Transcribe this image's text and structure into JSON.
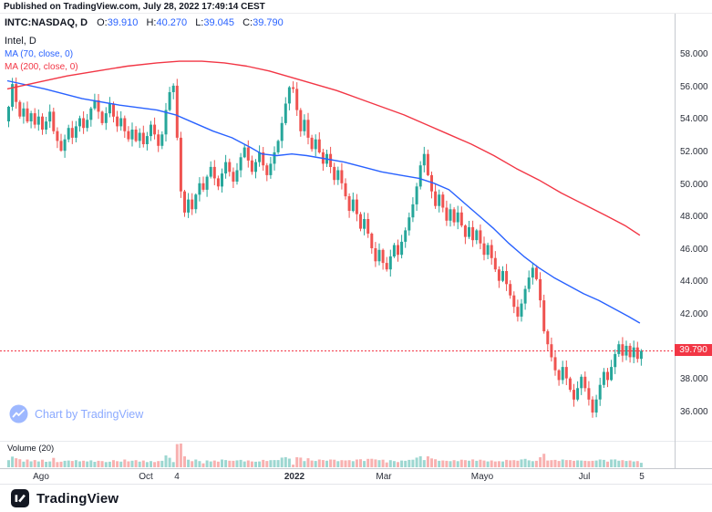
{
  "published_bar": {
    "text": "Published on TradingView.com, July 28, 2022 17:49:14 CEST"
  },
  "header": {
    "symbol": "INTC:NASDAQ, D",
    "ohlc": [
      {
        "label": "O:",
        "value": "39.910"
      },
      {
        "label": "H:",
        "value": "40.270"
      },
      {
        "label": "L:",
        "value": "39.045"
      },
      {
        "label": "C:",
        "value": "39.790"
      }
    ]
  },
  "legend": {
    "title": "Intel, D",
    "ma70": "MA (70, close, 0)",
    "ma200": "MA (200, close, 0)"
  },
  "watermark": {
    "text": "Chart by TradingView"
  },
  "volume_pane": {
    "label": "Volume (20)"
  },
  "price_axis": {
    "labels": [
      "58.000",
      "56.000",
      "54.000",
      "52.000",
      "50.000",
      "48.000",
      "46.000",
      "44.000",
      "42.000",
      "38.000",
      "36.000"
    ],
    "last_price_label": "39.790"
  },
  "time_axis": {
    "labels": [
      {
        "text": "Ago",
        "x": 45
      },
      {
        "text": "Oct",
        "x": 160
      },
      {
        "text": "4",
        "x": 194
      },
      {
        "text": "2022",
        "x": 323,
        "bold": true
      },
      {
        "text": "Mar",
        "x": 421
      },
      {
        "text": "Mayo",
        "x": 529
      },
      {
        "text": "Jul",
        "x": 641
      },
      {
        "text": "5",
        "x": 704
      }
    ]
  },
  "footer": {
    "brand": "TradingView"
  },
  "colors": {
    "up": "#26a69a",
    "down": "#ef5350",
    "up_volume": "rgba(38,166,154,0.45)",
    "down_volume": "rgba(239,83,80,0.45)",
    "ma_fast": "#2962ff",
    "ma_slow": "#f23645",
    "last_price": "#f23645",
    "accent_blue": "#2962ff",
    "watermark_blue": "rgba(41,98,255,0.55)"
  },
  "chart_data": {
    "type": "candlestick",
    "title": "Intel, D",
    "symbol": "INTC:NASDAQ",
    "interval": "D",
    "last": {
      "open": 39.91,
      "high": 40.27,
      "low": 39.045,
      "close": 39.79
    },
    "last_price_line": 39.79,
    "y_axis": {
      "visible_ticks": [
        58,
        56,
        54,
        52,
        50,
        48,
        46,
        44,
        42,
        40,
        38,
        36
      ],
      "approx_range": [
        34.3,
        59.4
      ],
      "grid": false
    },
    "x_axis_ticks": [
      "Ago",
      "Oct",
      "4",
      "2022",
      "Mar",
      "Mayo",
      "Jul",
      "5"
    ],
    "series": {
      "first_open": 53.9,
      "closes": [
        54.8,
        56.2,
        55.1,
        54.2,
        54.7,
        53.9,
        54.4,
        53.7,
        54.2,
        53.4,
        53.9,
        54.5,
        53.3,
        52.7,
        52.1,
        52.8,
        53.5,
        52.9,
        53.6,
        54.1,
        53.5,
        54.0,
        54.7,
        55.2,
        54.5,
        53.8,
        54.4,
        55.0,
        54.2,
        53.6,
        54.1,
        53.3,
        52.8,
        53.4,
        52.7,
        53.2,
        52.5,
        53.0,
        53.7,
        53.1,
        52.4,
        53.1,
        54.6,
        55.7,
        56.1,
        52.9,
        49.6,
        48.3,
        49.1,
        48.5,
        49.4,
        50.1,
        49.7,
        50.5,
        51.1,
        50.4,
        49.9,
        50.7,
        51.4,
        50.8,
        50.2,
        50.9,
        51.7,
        52.3,
        51.5,
        50.8,
        51.4,
        52.0,
        51.2,
        50.6,
        51.3,
        52.0,
        52.7,
        53.8,
        55.0,
        56.0,
        55.9,
        54.6,
        53.3,
        54.0,
        52.9,
        52.2,
        52.8,
        52.0,
        51.3,
        51.9,
        51.1,
        50.3,
        50.9,
        50.1,
        49.3,
        48.4,
        49.1,
        48.2,
        47.3,
        47.9,
        47.0,
        46.1,
        45.3,
        46.0,
        45.2,
        44.8,
        45.6,
        46.3,
        45.7,
        46.5,
        47.2,
        48.0,
        48.8,
        49.9,
        51.2,
        51.9,
        50.6,
        49.6,
        48.7,
        49.4,
        48.6,
        47.8,
        48.5,
        47.7,
        48.3,
        47.5,
        46.8,
        47.4,
        46.6,
        47.2,
        46.4,
        45.7,
        46.3,
        45.5,
        44.8,
        44.1,
        44.7,
        43.9,
        43.2,
        42.5,
        41.9,
        42.7,
        43.6,
        44.3,
        44.9,
        44.2,
        42.9,
        41.0,
        40.2,
        39.4,
        38.6,
        38.0,
        38.8,
        38.1,
        37.4,
        36.8,
        37.5,
        38.2,
        37.5,
        36.8,
        36.0,
        36.8,
        37.7,
        38.5,
        38.0,
        38.8,
        39.6,
        40.2,
        39.5,
        40.1,
        39.4,
        40.0,
        39.3,
        39.79
      ]
    },
    "overlays": [
      {
        "name": "MA 70",
        "color": "#2962ff",
        "points": [
          [
            0,
            56.4
          ],
          [
            10,
            55.9
          ],
          [
            20,
            55.3
          ],
          [
            30,
            54.9
          ],
          [
            40,
            54.6
          ],
          [
            45,
            54.3
          ],
          [
            50,
            53.8
          ],
          [
            55,
            53.3
          ],
          [
            60,
            52.9
          ],
          [
            65,
            52.3
          ],
          [
            68,
            51.9
          ],
          [
            72,
            51.8
          ],
          [
            76,
            51.9
          ],
          [
            80,
            51.8
          ],
          [
            85,
            51.6
          ],
          [
            90,
            51.4
          ],
          [
            95,
            51.1
          ],
          [
            100,
            50.8
          ],
          [
            105,
            50.6
          ],
          [
            110,
            50.4
          ],
          [
            114,
            50.1
          ],
          [
            118,
            49.7
          ],
          [
            122,
            48.9
          ],
          [
            126,
            48.1
          ],
          [
            130,
            47.3
          ],
          [
            134,
            46.4
          ],
          [
            138,
            45.6
          ],
          [
            142,
            44.9
          ],
          [
            146,
            44.3
          ],
          [
            150,
            43.8
          ],
          [
            154,
            43.3
          ],
          [
            158,
            42.9
          ],
          [
            162,
            42.4
          ],
          [
            166,
            41.9
          ],
          [
            169,
            41.5
          ]
        ]
      },
      {
        "name": "MA 200",
        "color": "#f23645",
        "points": [
          [
            0,
            55.9
          ],
          [
            8,
            56.3
          ],
          [
            16,
            56.7
          ],
          [
            24,
            57.0
          ],
          [
            32,
            57.3
          ],
          [
            40,
            57.5
          ],
          [
            46,
            57.6
          ],
          [
            52,
            57.6
          ],
          [
            58,
            57.5
          ],
          [
            64,
            57.3
          ],
          [
            70,
            57.0
          ],
          [
            76,
            56.6
          ],
          [
            82,
            56.2
          ],
          [
            88,
            55.8
          ],
          [
            94,
            55.3
          ],
          [
            100,
            54.8
          ],
          [
            106,
            54.3
          ],
          [
            112,
            53.7
          ],
          [
            118,
            53.1
          ],
          [
            124,
            52.5
          ],
          [
            130,
            51.8
          ],
          [
            136,
            51.0
          ],
          [
            142,
            50.3
          ],
          [
            148,
            49.5
          ],
          [
            154,
            48.8
          ],
          [
            160,
            48.1
          ],
          [
            165,
            47.5
          ],
          [
            169,
            46.9
          ]
        ]
      }
    ],
    "volume_indicator": "Volume (20)"
  }
}
